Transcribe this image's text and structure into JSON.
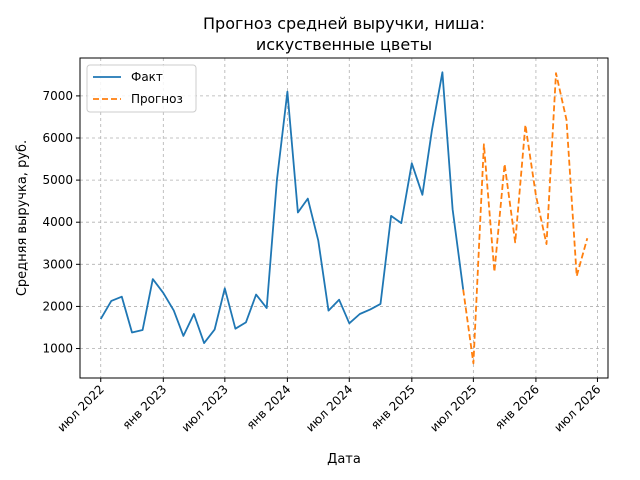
{
  "chart_data": {
    "type": "line",
    "title_line1": "Прогноз средней выручки, ниша:",
    "title_line2": "искуственные цветы",
    "xlabel": "Дата",
    "ylabel": "Средняя выручка, руб.",
    "grid": true,
    "legend_position": "top-left",
    "x_ticks": [
      {
        "date": "2022-07-01",
        "label": "июл 2022"
      },
      {
        "date": "2023-01-01",
        "label": "янв 2023"
      },
      {
        "date": "2023-07-01",
        "label": "июл 2023"
      },
      {
        "date": "2024-01-01",
        "label": "янв 2024"
      },
      {
        "date": "2024-07-01",
        "label": "июл 2024"
      },
      {
        "date": "2025-01-01",
        "label": "янв 2025"
      },
      {
        "date": "2025-07-01",
        "label": "июл 2025"
      },
      {
        "date": "2026-01-01",
        "label": "янв 2026"
      },
      {
        "date": "2026-07-01",
        "label": "июл 2026"
      }
    ],
    "y_ticks": [
      1000,
      2000,
      3000,
      4000,
      5000,
      6000,
      7000
    ],
    "xlim": [
      "2022-05-01",
      "2026-08-01"
    ],
    "ylim": [
      300,
      7900
    ],
    "series": [
      {
        "name": "Факт",
        "color": "#1f77b4",
        "style": "solid",
        "x": [
          "2022-07-01",
          "2022-08-01",
          "2022-09-01",
          "2022-10-01",
          "2022-11-01",
          "2022-12-01",
          "2023-01-01",
          "2023-02-01",
          "2023-03-01",
          "2023-04-01",
          "2023-05-01",
          "2023-06-01",
          "2023-07-01",
          "2023-08-01",
          "2023-09-01",
          "2023-10-01",
          "2023-11-01",
          "2023-12-01",
          "2024-01-01",
          "2024-02-01",
          "2024-03-01",
          "2024-04-01",
          "2024-05-01",
          "2024-06-01",
          "2024-07-01",
          "2024-08-01",
          "2024-09-01",
          "2024-10-01",
          "2024-11-01",
          "2024-12-01",
          "2025-01-01",
          "2025-02-01",
          "2025-03-01",
          "2025-04-01",
          "2025-05-01",
          "2025-06-01"
        ],
        "y": [
          1700,
          2130,
          2230,
          1380,
          1440,
          2650,
          2320,
          1900,
          1300,
          1820,
          1130,
          1450,
          2430,
          1470,
          1620,
          2280,
          1960,
          5000,
          7100,
          4230,
          4560,
          3560,
          1900,
          2160,
          1600,
          1820,
          1930,
          2060,
          4150,
          3980,
          5400,
          4650,
          6180,
          7560,
          4310,
          2400
        ]
      },
      {
        "name": "Прогноз",
        "color": "#ff7f0e",
        "style": "dashed",
        "x": [
          "2025-06-01",
          "2025-07-01",
          "2025-08-01",
          "2025-09-01",
          "2025-10-01",
          "2025-11-01",
          "2025-12-01",
          "2026-01-01",
          "2026-02-01",
          "2026-03-01",
          "2026-04-01",
          "2026-05-01",
          "2026-06-01"
        ],
        "y": [
          2400,
          650,
          5850,
          2820,
          5380,
          3520,
          6310,
          4640,
          3480,
          7540,
          6430,
          2720,
          3620
        ]
      }
    ]
  }
}
